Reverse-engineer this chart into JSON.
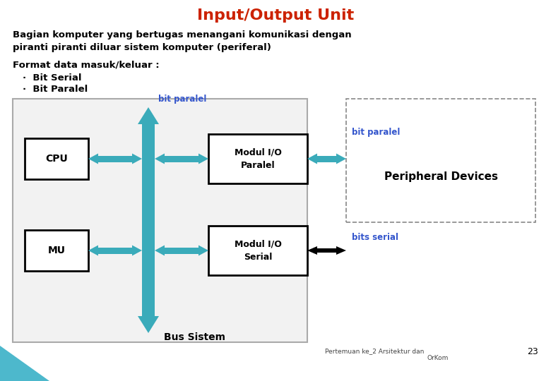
{
  "title": "Input/Output Unit",
  "title_color": "#CC2200",
  "title_fontsize": 16,
  "desc_line1": "Bagian komputer yang bertugas menangani komunikasi dengan",
  "desc_line2": "piranti piranti diluar sistem komputer (periferal)",
  "format_label": "Format data masuk/keluar :",
  "bullet1": "·  Bit Serial",
  "bullet2": "·  Bit Paralel",
  "label_cpu": "CPU",
  "label_mu": "MU",
  "label_modul_paralel_line1": "Modul I/O",
  "label_modul_paralel_line2": "Paralel",
  "label_modul_serial_line1": "Modul I/O",
  "label_modul_serial_line2": "Serial",
  "label_bus": "Bus Sistem",
  "label_bit_paralel_top": "bit paralel",
  "label_bit_paralel_right": "bit paralel",
  "label_bits_serial": "bits serial",
  "label_peripheral": "Peripheral Devices",
  "footer_left": "Pertemuan ke_2 Arsitektur dan",
  "footer_center": "OrKom",
  "page_num": "23",
  "teal_color": "#3AABBA",
  "blue_label_color": "#3355CC",
  "bg_color": "#FFFFFF"
}
